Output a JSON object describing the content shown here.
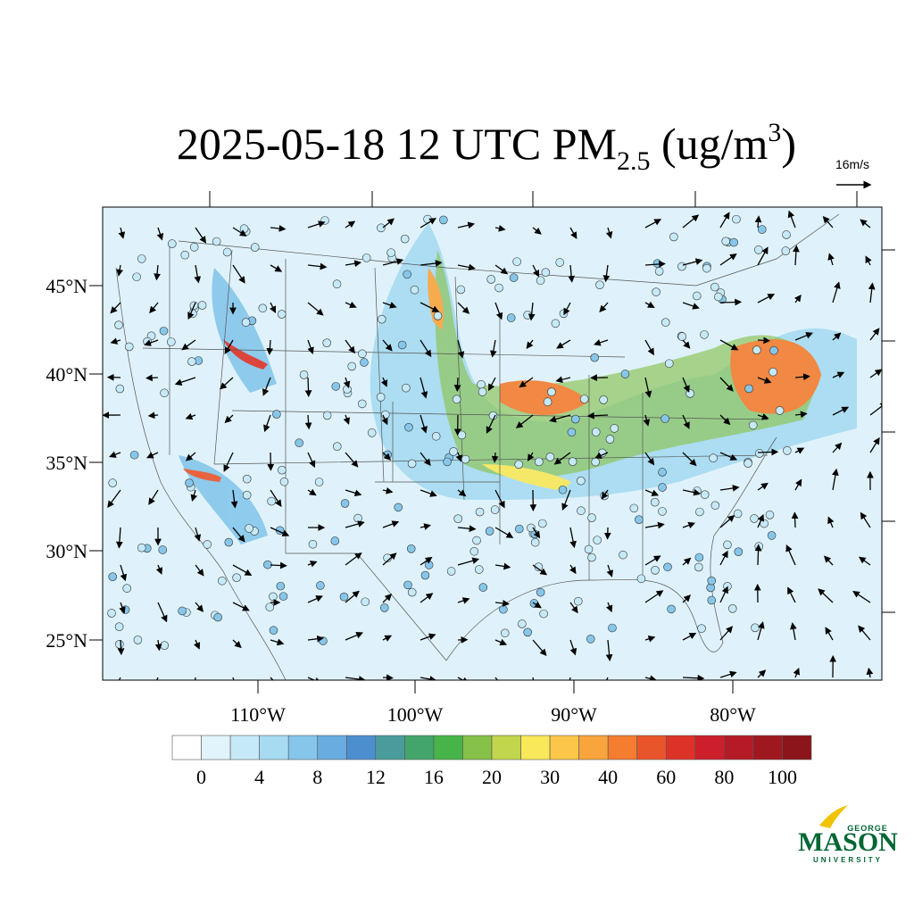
{
  "title": {
    "main": "2025-05-18 12 UTC PM",
    "sub": "2.5",
    "mid": " (ug/m",
    "sup": "3",
    "end": ")"
  },
  "wind_reference": "16m/s",
  "latitude_labels": [
    "45°N",
    "40°N",
    "35°N",
    "30°N",
    "25°N"
  ],
  "longitude_labels": [
    "110°W",
    "100°W",
    "90°W",
    "80°W"
  ],
  "colorbar": {
    "colors": [
      "#ffffff",
      "#e1f3fb",
      "#c6e9f7",
      "#a7dbf2",
      "#86c6ea",
      "#68ace0",
      "#4d8ecf",
      "#4a9c9c",
      "#44a56c",
      "#47b449",
      "#86c14a",
      "#c1d64d",
      "#f8e85a",
      "#fbc649",
      "#f9a43d",
      "#f47d30",
      "#e9552b",
      "#dc3228",
      "#cc1f2b",
      "#b51b26",
      "#a0181f",
      "#8b151a"
    ],
    "labels": [
      "0",
      "4",
      "8",
      "12",
      "16",
      "20",
      "30",
      "40",
      "60",
      "80",
      "100"
    ]
  },
  "logo": {
    "top": "GEORGE",
    "name": "MASON",
    "bottom": "UNIVERSITY"
  }
}
